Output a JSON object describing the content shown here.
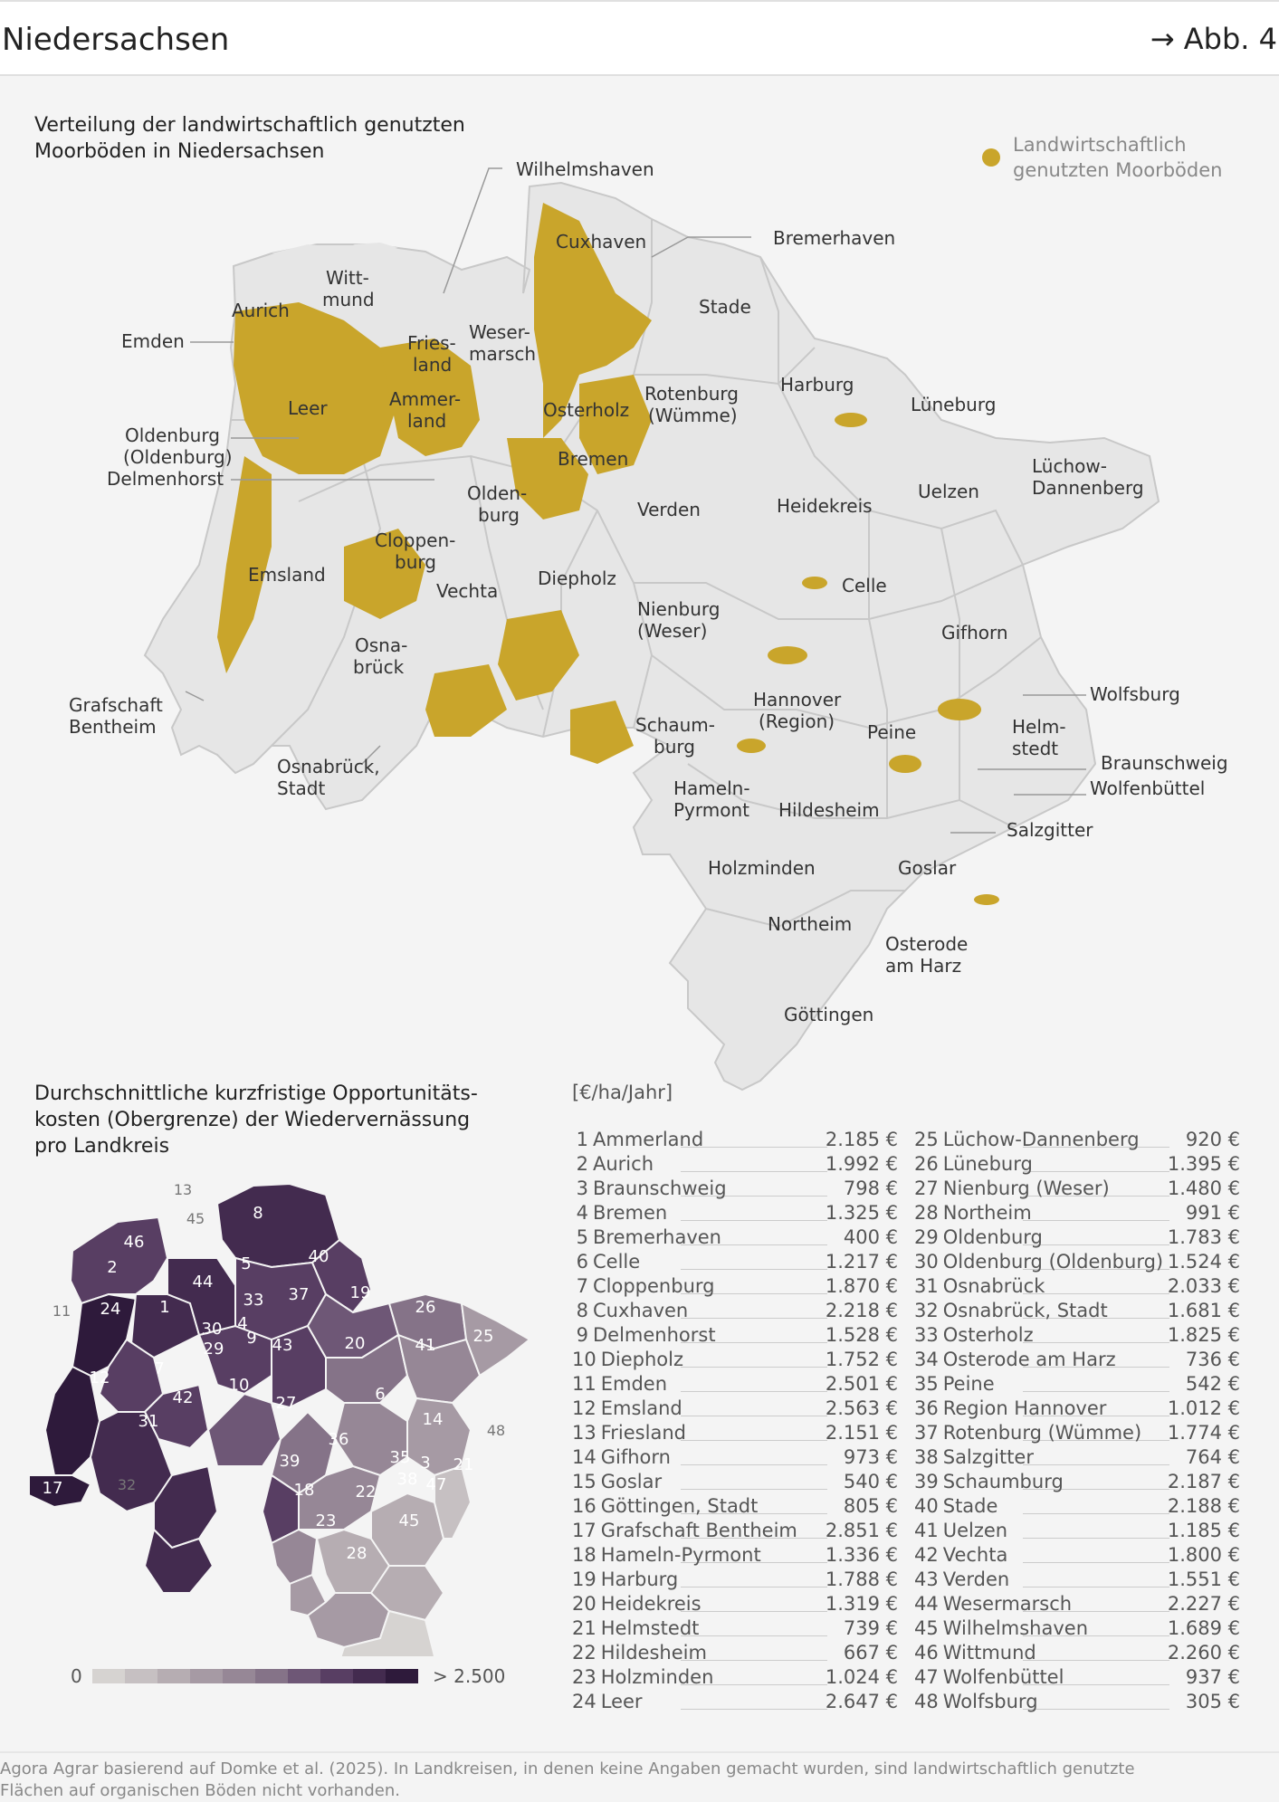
{
  "header": {
    "title": "Niedersachsen",
    "figure_ref": "→ Abb. 4"
  },
  "map1": {
    "title_line1": "Verteilung der landwirtschaftlich genutzten",
    "title_line2": "Moorböden in Niedersachsen",
    "legend_line1": "Landwirtschaftlich",
    "legend_line2": "genutzten Moorböden",
    "legend_color": "#c9a52b",
    "base_color": "#e6e6e6",
    "labels": {
      "wilhelmshaven": "Wilhelmshaven",
      "cuxhaven": "Cuxhaven",
      "bremerhaven": "Bremerhaven",
      "wittmund1": "Witt-",
      "wittmund2": "mund",
      "aurich": "Aurich",
      "emden": "Emden",
      "stade": "Stade",
      "friesland1": "Fries-",
      "friesland2": "land",
      "wesermarsch1": "Weser-",
      "wesermarsch2": "marsch",
      "leer": "Leer",
      "ammerland1": "Ammer-",
      "ammerland2": "land",
      "osterholz": "Osterholz",
      "rotenburg1": "Rotenburg",
      "rotenburg2": "(Wümme)",
      "harburg": "Harburg",
      "lueneburg": "Lüneburg",
      "oldenburg_ol1": "Oldenburg",
      "oldenburg_ol2": "(Oldenburg)",
      "delmenhorst": "Delmenhorst",
      "bremen": "Bremen",
      "oldenburg1": "Olden-",
      "oldenburg2": "burg",
      "verden": "Verden",
      "heidekreis": "Heidekreis",
      "uelzen": "Uelzen",
      "luechow1": "Lüchow-",
      "luechow2": "Dannenberg",
      "cloppenburg1": "Cloppen-",
      "cloppenburg2": "burg",
      "emsland": "Emsland",
      "vechta": "Vechta",
      "diepholz": "Diepholz",
      "nienburg1": "Nienburg",
      "nienburg2": "(Weser)",
      "celle": "Celle",
      "gifhorn": "Gifhorn",
      "osnabrueck1": "Osna-",
      "osnabrueck2": "brück",
      "bentheim1": "Grafschaft",
      "bentheim2": "Bentheim",
      "wolfsburg": "Wolfsburg",
      "hannover1": "Hannover",
      "hannover2": "(Region)",
      "schaumburg1": "Schaum-",
      "schaumburg2": "burg",
      "peine": "Peine",
      "helmstedt1": "Helm-",
      "helmstedt2": "stedt",
      "braunschweig": "Braunschweig",
      "wolfenbuettel": "Wolfenbüttel",
      "osnabrueck_stadt1": "Osnabrück,",
      "osnabrueck_stadt2": "Stadt",
      "hameln1": "Hameln-",
      "hameln2": "Pyrmont",
      "hildesheim": "Hildesheim",
      "salzgitter": "Salzgitter",
      "holzminden": "Holzminden",
      "goslar": "Goslar",
      "northeim": "Northeim",
      "osterode1": "Osterode",
      "osterode2": "am Harz",
      "goettingen": "Göttingen"
    }
  },
  "map2": {
    "title_line1": "Durchschnittliche kurzfristige Opportunitäts-",
    "title_line2": "kosten (Obergrenze) der Wiedervernässung",
    "title_line3": "pro Landkreis",
    "unit": "[€/ha/Jahr]",
    "scale_min": "0",
    "scale_max": "> 2.500",
    "scale_colors": [
      "#d6d3d1",
      "#c6c0c2",
      "#b6adb2",
      "#a69aa4",
      "#968796",
      "#857388",
      "#6e5776",
      "#583e63",
      "#432b4f",
      "#2e1a3b"
    ],
    "outside_numbers": [
      "13",
      "45",
      "11",
      "32",
      "48"
    ],
    "rows": [
      {
        "no": "1",
        "name": "Ammerland",
        "value": "2.185 €"
      },
      {
        "no": "2",
        "name": "Aurich",
        "value": "1.992 €"
      },
      {
        "no": "3",
        "name": "Braunschweig",
        "value": "798 €"
      },
      {
        "no": "4",
        "name": "Bremen",
        "value": "1.325 €"
      },
      {
        "no": "5",
        "name": "Bremerhaven",
        "value": "400 €"
      },
      {
        "no": "6",
        "name": "Celle",
        "value": "1.217 €"
      },
      {
        "no": "7",
        "name": "Cloppenburg",
        "value": "1.870 €"
      },
      {
        "no": "8",
        "name": "Cuxhaven",
        "value": "2.218 €"
      },
      {
        "no": "9",
        "name": "Delmenhorst",
        "value": "1.528 €"
      },
      {
        "no": "10",
        "name": "Diepholz",
        "value": "1.752 €"
      },
      {
        "no": "11",
        "name": "Emden",
        "value": "2.501 €"
      },
      {
        "no": "12",
        "name": "Emsland",
        "value": "2.563 €"
      },
      {
        "no": "13",
        "name": "Friesland",
        "value": "2.151 €"
      },
      {
        "no": "14",
        "name": "Gifhorn",
        "value": "973 €"
      },
      {
        "no": "15",
        "name": "Goslar",
        "value": "540 €"
      },
      {
        "no": "16",
        "name": "Göttingen, Stadt",
        "value": "805 €"
      },
      {
        "no": "17",
        "name": "Grafschaft Bentheim",
        "value": "2.851 €"
      },
      {
        "no": "18",
        "name": "Hameln-Pyrmont",
        "value": "1.336 €"
      },
      {
        "no": "19",
        "name": "Harburg",
        "value": "1.788 €"
      },
      {
        "no": "20",
        "name": "Heidekreis",
        "value": "1.319 €"
      },
      {
        "no": "21",
        "name": "Helmstedt",
        "value": "739 €"
      },
      {
        "no": "22",
        "name": "Hildesheim",
        "value": "667 €"
      },
      {
        "no": "23",
        "name": "Holzminden",
        "value": "1.024 €"
      },
      {
        "no": "24",
        "name": "Leer",
        "value": "2.647 €"
      },
      {
        "no": "25",
        "name": "Lüchow-Dannenberg",
        "value": "920 €"
      },
      {
        "no": "26",
        "name": "Lüneburg",
        "value": "1.395 €"
      },
      {
        "no": "27",
        "name": "Nienburg (Weser)",
        "value": "1.480 €"
      },
      {
        "no": "28",
        "name": "Northeim",
        "value": "991 €"
      },
      {
        "no": "29",
        "name": "Oldenburg",
        "value": "1.783 €"
      },
      {
        "no": "30",
        "name": "Oldenburg (Oldenburg)",
        "value": "1.524 €"
      },
      {
        "no": "31",
        "name": "Osnabrück",
        "value": "2.033 €"
      },
      {
        "no": "32",
        "name": "Osnabrück, Stadt",
        "value": "1.681 €"
      },
      {
        "no": "33",
        "name": "Osterholz",
        "value": "1.825 €"
      },
      {
        "no": "34",
        "name": "Osterode am Harz",
        "value": "736 €"
      },
      {
        "no": "35",
        "name": "Peine",
        "value": "542 €"
      },
      {
        "no": "36",
        "name": "Region Hannover",
        "value": "1.012 €"
      },
      {
        "no": "37",
        "name": "Rotenburg (Wümme)",
        "value": "1.774 €"
      },
      {
        "no": "38",
        "name": "Salzgitter",
        "value": "764 €"
      },
      {
        "no": "39",
        "name": "Schaumburg",
        "value": "2.187 €"
      },
      {
        "no": "40",
        "name": "Stade",
        "value": "2.188 €"
      },
      {
        "no": "41",
        "name": "Uelzen",
        "value": "1.185 €"
      },
      {
        "no": "42",
        "name": "Vechta",
        "value": "1.800 €"
      },
      {
        "no": "43",
        "name": "Verden",
        "value": "1.551 €"
      },
      {
        "no": "44",
        "name": "Wesermarsch",
        "value": "2.227 €"
      },
      {
        "no": "45",
        "name": "Wilhelmshaven",
        "value": "1.689 €"
      },
      {
        "no": "46",
        "name": "Wittmund",
        "value": "2.260 €"
      },
      {
        "no": "47",
        "name": "Wolfenbüttel",
        "value": "937 €"
      },
      {
        "no": "48",
        "name": "Wolfsburg",
        "value": "305 €"
      }
    ]
  },
  "footer": {
    "line1": "Agora Agrar basierend auf Domke et al. (2025). In Landkreisen, in denen keine Angaben gemacht wurden, sind landwirtschaftlich genutzte",
    "line2": "Flächen auf organischen Böden nicht vorhanden."
  }
}
